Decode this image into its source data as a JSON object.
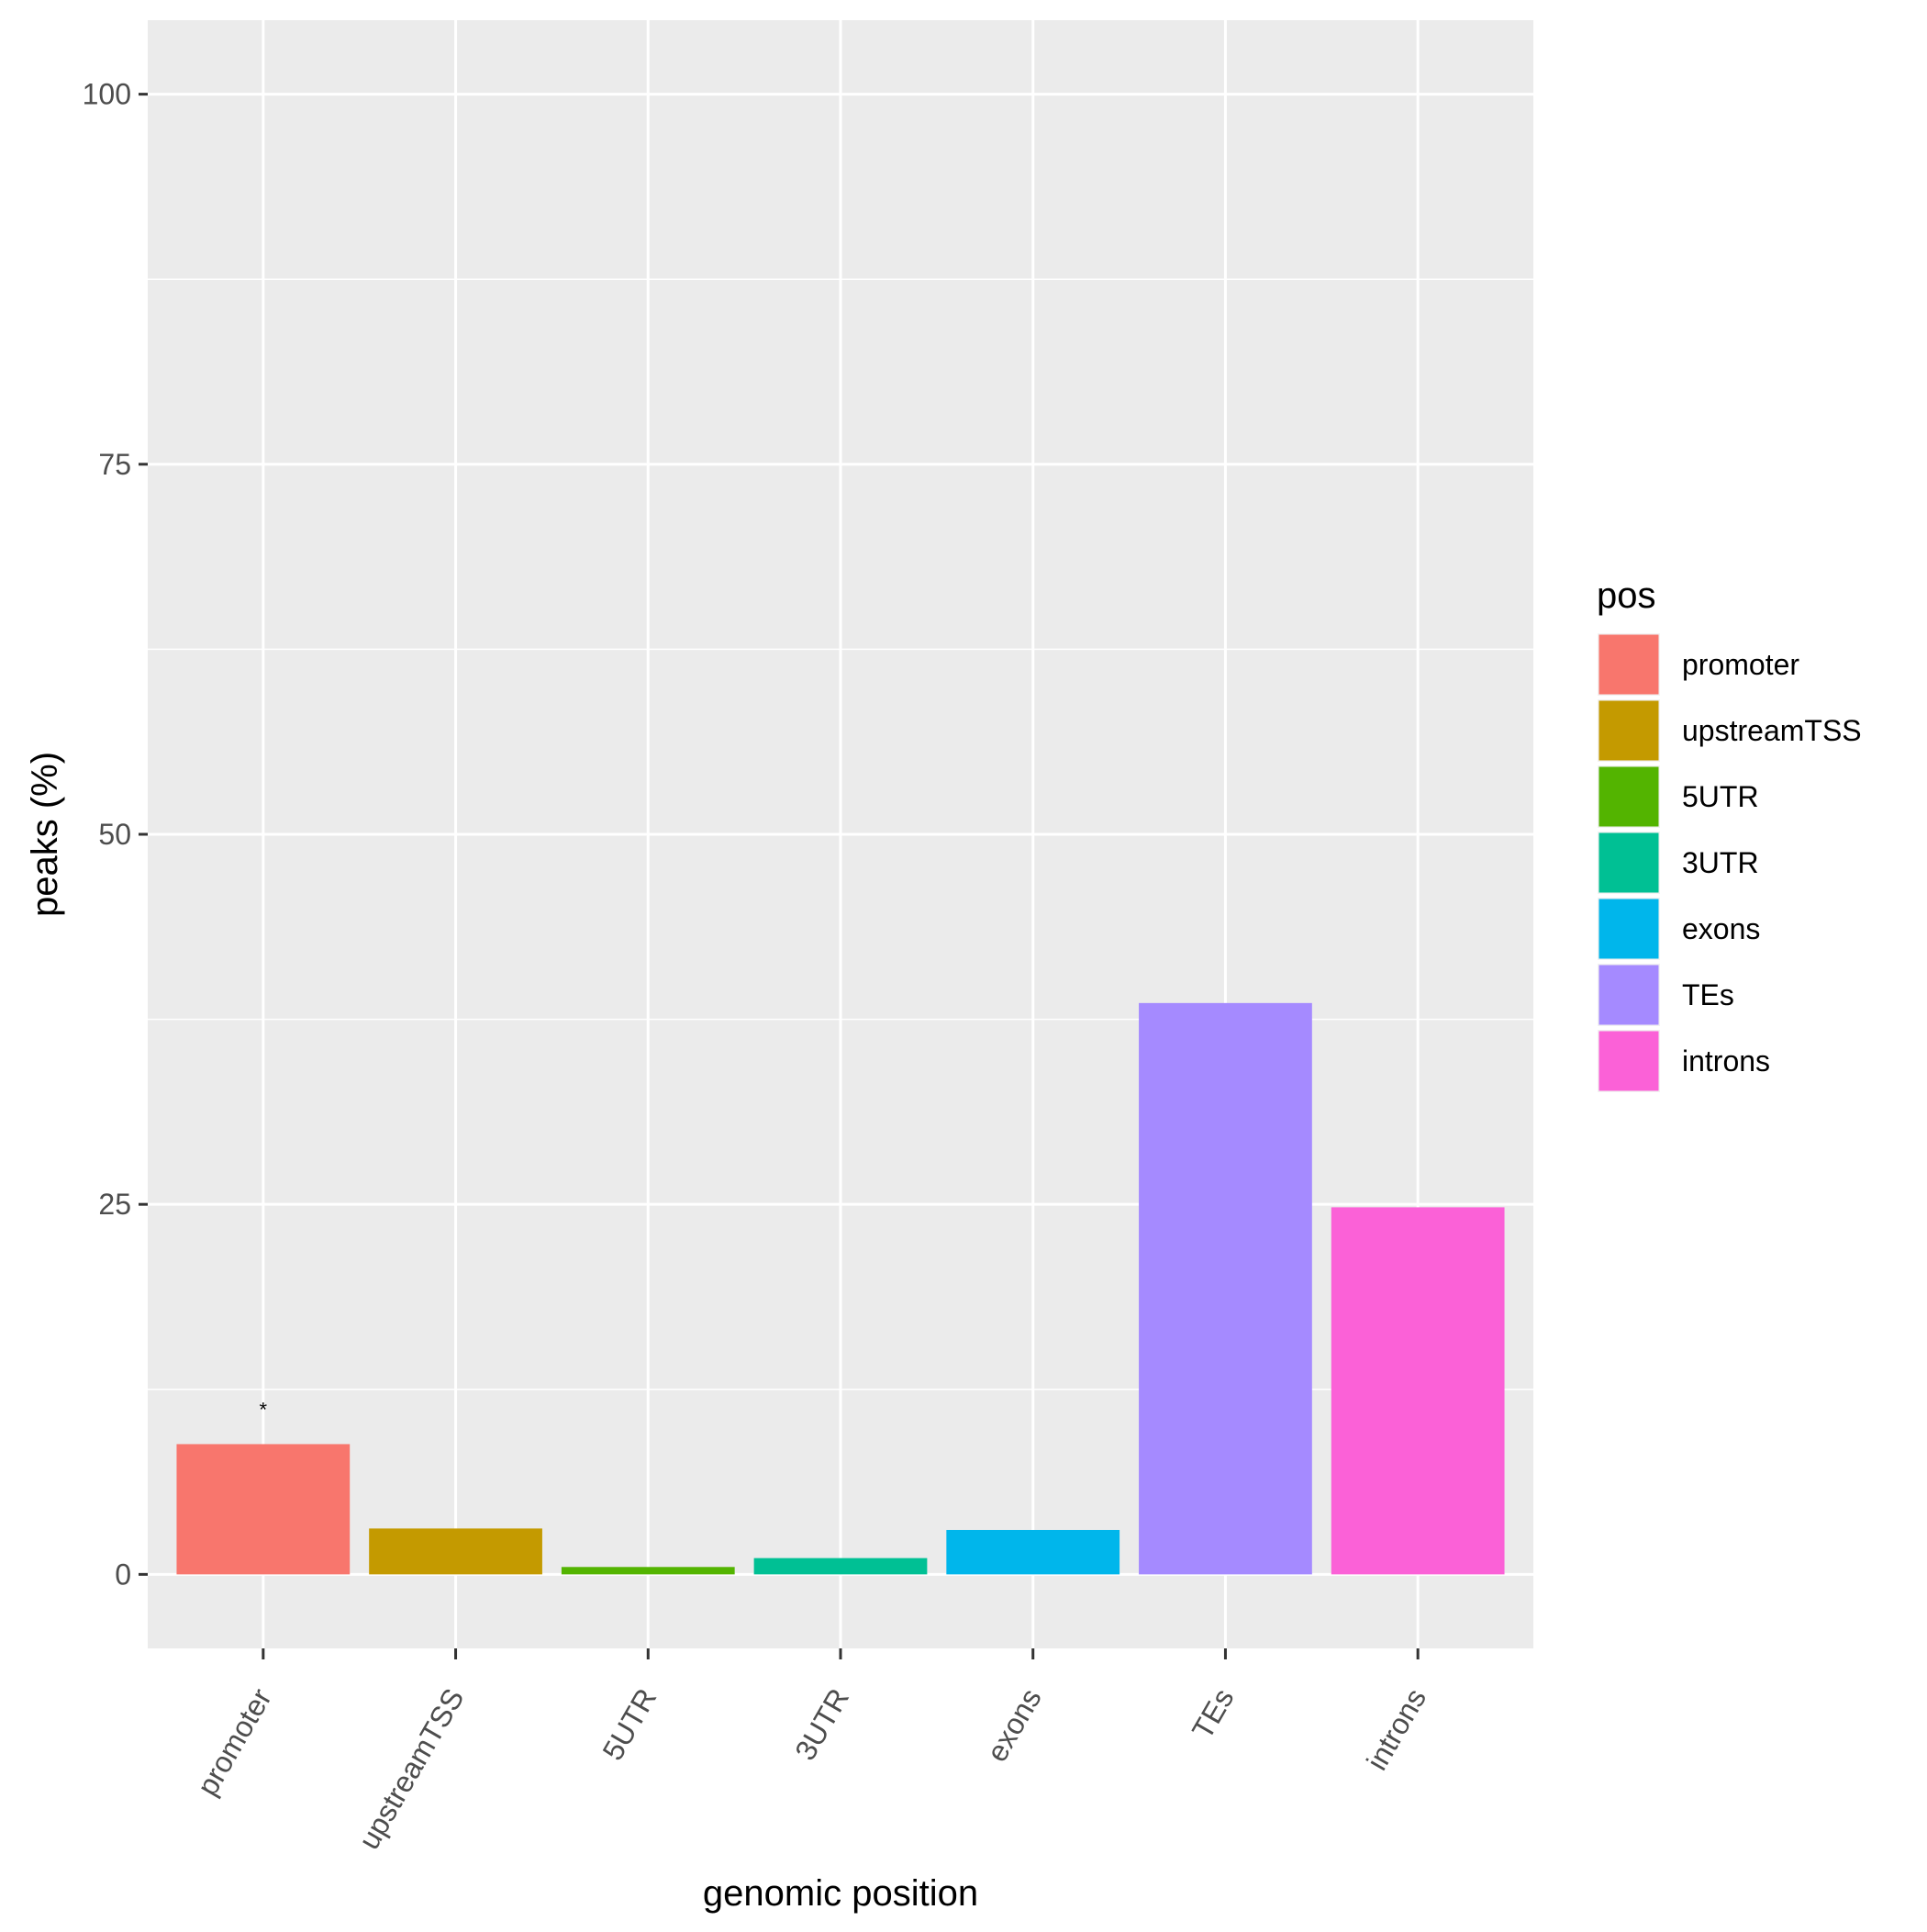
{
  "chart_data": {
    "type": "bar",
    "categories": [
      "promoter",
      "upstreamTSS",
      "5UTR",
      "3UTR",
      "exons",
      "TEs",
      "introns"
    ],
    "values": [
      8.8,
      3.1,
      0.5,
      1.1,
      3.0,
      38.6,
      24.8
    ],
    "colors": [
      "#F8766D",
      "#C49A00",
      "#53B400",
      "#00C094",
      "#00B6EB",
      "#A58AFF",
      "#FB61D7"
    ],
    "xlabel": "genomic position",
    "ylabel": "peaks (%)",
    "ylim": [
      -5,
      105
    ],
    "yticks": [
      0,
      25,
      50,
      75,
      100
    ],
    "ytick_labels": [
      "0",
      "25",
      "50",
      "75",
      "100"
    ],
    "grid": true,
    "legend": {
      "title": "pos",
      "placement": "right",
      "entries": [
        "promoter",
        "upstreamTSS",
        "5UTR",
        "3UTR",
        "exons",
        "TEs",
        "introns"
      ]
    },
    "annotations": [
      {
        "category": "promoter",
        "text": "*"
      }
    ]
  }
}
